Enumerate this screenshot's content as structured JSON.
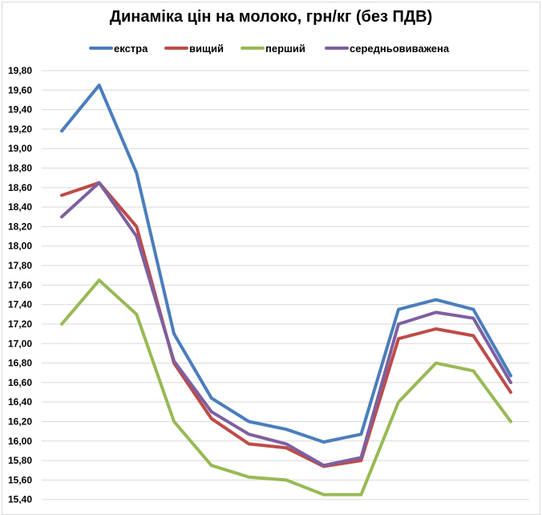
{
  "chart_data": {
    "type": "line",
    "title": "Динаміка цін на молоко, грн/кг (без ПДВ)",
    "xlabel": "",
    "ylabel": "",
    "ylim": [
      15.4,
      19.8
    ],
    "y_ticks": [
      "19,80",
      "19,60",
      "19,40",
      "19,20",
      "19,00",
      "18,80",
      "18,60",
      "18,40",
      "18,20",
      "18,00",
      "17,80",
      "17,60",
      "17,40",
      "17,20",
      "17,00",
      "16,80",
      "16,60",
      "16,40",
      "16,20",
      "16,00",
      "15,80",
      "15,60",
      "15,40"
    ],
    "grid": true,
    "legend_position": "top",
    "x": [
      1,
      2,
      3,
      4,
      5,
      6,
      7,
      8,
      9,
      10,
      11,
      12,
      13
    ],
    "series": [
      {
        "name": "екстра",
        "color": "#4A7EBB",
        "values": [
          19.18,
          19.65,
          18.75,
          17.1,
          16.44,
          16.2,
          16.12,
          15.99,
          16.07,
          17.35,
          17.45,
          17.35,
          16.67
        ]
      },
      {
        "name": "вищий",
        "color": "#BE4B48",
        "values": [
          18.52,
          18.65,
          18.2,
          16.8,
          16.23,
          15.97,
          15.93,
          15.74,
          15.8,
          17.05,
          17.15,
          17.08,
          16.5
        ]
      },
      {
        "name": "перший",
        "color": "#98B954",
        "values": [
          17.2,
          17.65,
          17.3,
          16.2,
          15.75,
          15.63,
          15.6,
          15.45,
          15.45,
          16.4,
          16.8,
          16.72,
          16.2
        ]
      },
      {
        "name": "середньовиважена",
        "color": "#7D60A0",
        "values": [
          18.3,
          18.65,
          18.1,
          16.82,
          16.3,
          16.07,
          15.97,
          15.75,
          15.83,
          17.2,
          17.32,
          17.26,
          16.6
        ]
      }
    ]
  },
  "legend": {
    "items": [
      {
        "label": "екстра",
        "color": "#4A7EBB"
      },
      {
        "label": "вищий",
        "color": "#BE4B48"
      },
      {
        "label": "перший",
        "color": "#98B954"
      },
      {
        "label": "середньовиважена",
        "color": "#7D60A0"
      }
    ]
  }
}
